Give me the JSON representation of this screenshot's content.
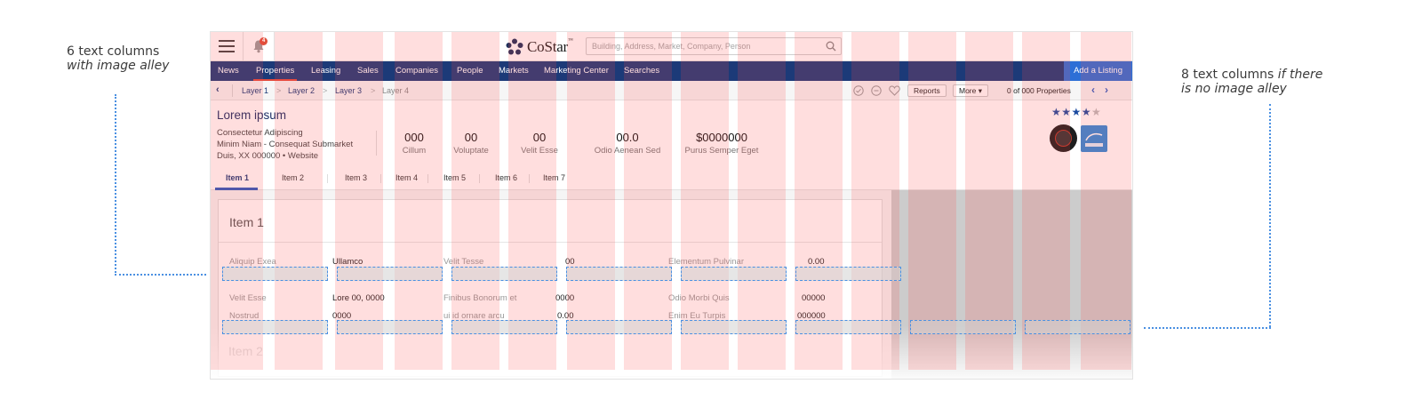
{
  "annotations": {
    "left_line1": "6 text columns",
    "left_line2": "with image alley",
    "right_line1_plain": "8 text columns ",
    "right_line1_italic": "if there",
    "right_line2_italic": "is no image alley"
  },
  "topbar": {
    "notification_count": "4",
    "logo_text": "CoStar",
    "logo_tm": "™",
    "search_placeholder": "Building, Address, Market, Company, Person"
  },
  "nav": {
    "items": [
      "News",
      "Properties",
      "Leasing",
      "Sales",
      "Companies",
      "People",
      "Markets",
      "Marketing Center",
      "Searches"
    ],
    "active": "Properties",
    "add_listing": "Add a Listing"
  },
  "breadcrumb": {
    "layers": [
      "Layer 1",
      "Layer 2",
      "Layer 3",
      "Layer 4"
    ],
    "reports_label": "Reports",
    "more_label": "More ▾",
    "properties_count": "0 of 000 Properties"
  },
  "property": {
    "title": "Lorem ipsum",
    "address_lines": [
      "Consectetur Adipiscing",
      "Minim Niam - Consequat Submarket",
      "Duis, XX 000000 • Website"
    ],
    "stats": [
      {
        "value": "000",
        "label": "Cillum"
      },
      {
        "value": "00",
        "label": "Voluptate"
      },
      {
        "value": "00",
        "label": "Velit Esse"
      },
      {
        "value": "00.0",
        "label": "Odio Aenean Sed"
      },
      {
        "value": "$0000000",
        "label": "Purus Semper Eget"
      }
    ],
    "rating": 4,
    "rating_max": 5,
    "stars_on": "★★★★",
    "stars_off": "★",
    "badges": [
      "leed-badge-icon",
      "energy-star-icon"
    ]
  },
  "tabs": {
    "items": [
      "Item 1",
      "Item 2",
      "Item 3",
      "Item 4",
      "Item 5",
      "Item 6",
      "Item 7"
    ],
    "active": "Item 1"
  },
  "section": {
    "title": "Item 1",
    "next_title": "Item 2",
    "rows": [
      {
        "c1_label": "Aliquip Exea",
        "c2_value": "Ullamco",
        "c3_label": "Velit Tesse",
        "c4_value": "00",
        "c5_label": "Elementum Pulvinar",
        "c6_value": "0.00"
      },
      {
        "c1_label": "Velit Esse",
        "c2_value": "Lore 00, 0000",
        "c3_label": "Finibus Bonorum et",
        "c4_value": "0000",
        "c5_label": "Odio Morbi Quis",
        "c6_value": "00000"
      },
      {
        "c1_label": "Nostrud",
        "c2_value": "0000",
        "c3_label": "ui id ornare arcu",
        "c4_value": "0.00",
        "c5_label": "Enim Eu Turpis",
        "c6_value": "000000"
      }
    ]
  },
  "colors": {
    "nav_bg": "#1c3a78",
    "accent": "#2d6fd6",
    "grid_column": "#ff4646",
    "guide_blue": "#4a90e2"
  }
}
